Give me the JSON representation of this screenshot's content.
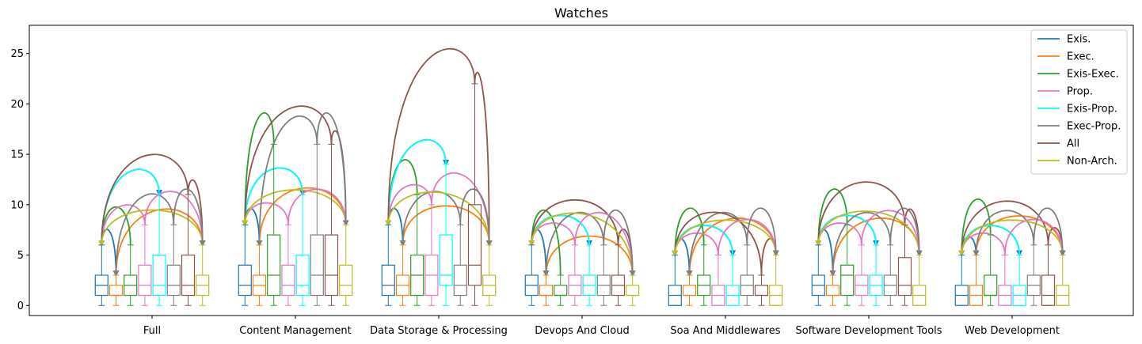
{
  "chart_data": {
    "type": "box",
    "title": "Watches",
    "xlabel": "",
    "ylabel": "",
    "ylim": [
      -1,
      27.8
    ],
    "yticks": [
      0,
      5,
      10,
      15,
      20,
      25
    ],
    "categories": [
      "Full",
      "Content Management",
      "Data Storage & Processing",
      "Devops And Cloud",
      "Soa And Middlewares",
      "Software Development Tools",
      "Web Development"
    ],
    "legend_position": "top-right",
    "grid": false,
    "series": [
      {
        "name": "Exis.",
        "color": "#1f77b4",
        "boxes": [
          {
            "min": 0,
            "q1": 1,
            "median": 2,
            "q3": 3,
            "max": 6
          },
          {
            "min": 0,
            "q1": 1,
            "median": 2,
            "q3": 4,
            "max": 8
          },
          {
            "min": 0,
            "q1": 1,
            "median": 2,
            "q3": 4,
            "max": 8
          },
          {
            "min": 0,
            "q1": 1,
            "median": 2,
            "q3": 3,
            "max": 6
          },
          {
            "min": 0,
            "q1": 0,
            "median": 1,
            "q3": 2,
            "max": 5
          },
          {
            "min": 0,
            "q1": 1,
            "median": 2,
            "q3": 3,
            "max": 6
          },
          {
            "min": 0,
            "q1": 0,
            "median": 1,
            "q3": 2,
            "max": 5
          }
        ]
      },
      {
        "name": "Exec.",
        "color": "#ff7f0e",
        "boxes": [
          {
            "min": 0,
            "q1": 1,
            "median": 1,
            "q3": 2,
            "max": 3
          },
          {
            "min": 0,
            "q1": 1,
            "median": 2,
            "q3": 3,
            "max": 6
          },
          {
            "min": 0,
            "q1": 1,
            "median": 2,
            "q3": 3,
            "max": 6
          },
          {
            "min": 0,
            "q1": 1,
            "median": 1,
            "q3": 2,
            "max": 3
          },
          {
            "min": 0,
            "q1": 1,
            "median": 1,
            "q3": 2,
            "max": 3
          },
          {
            "min": 0,
            "q1": 1,
            "median": 1,
            "q3": 2,
            "max": 3
          },
          {
            "min": 0,
            "q1": 0,
            "median": 1,
            "q3": 2,
            "max": 5
          }
        ]
      },
      {
        "name": "Exis-Exec.",
        "color": "#2ca02c",
        "boxes": [
          {
            "min": 0,
            "q1": 1,
            "median": 2,
            "q3": 3,
            "max": 6
          },
          {
            "min": 0,
            "q1": 1,
            "median": 3,
            "q3": 7,
            "max": 16
          },
          {
            "min": 0,
            "q1": 1,
            "median": 3,
            "q3": 5,
            "max": 11
          },
          {
            "min": 0,
            "q1": 1,
            "median": 1,
            "q3": 2,
            "max": 3
          },
          {
            "min": 0,
            "q1": 1,
            "median": 2,
            "q3": 3,
            "max": 6
          },
          {
            "min": 0,
            "q1": 1,
            "median": 3,
            "q3": 4,
            "max": 8
          },
          {
            "min": 0,
            "q1": 1,
            "median": 1,
            "q3": 3,
            "max": 7
          }
        ]
      },
      {
        "name": "Prop.",
        "color": "#e377c2",
        "boxes": [
          {
            "min": 0,
            "q1": 1,
            "median": 2,
            "q3": 4,
            "max": 8
          },
          {
            "min": 0,
            "q1": 1,
            "median": 2,
            "q3": 4,
            "max": 8
          },
          {
            "min": 0,
            "q1": 1,
            "median": 3,
            "q3": 5,
            "max": 10
          },
          {
            "min": 0,
            "q1": 1,
            "median": 2,
            "q3": 3,
            "max": 6
          },
          {
            "min": 0,
            "q1": 0,
            "median": 1,
            "q3": 2,
            "max": 5
          },
          {
            "min": 0,
            "q1": 1,
            "median": 2,
            "q3": 3,
            "max": 6
          },
          {
            "min": 0,
            "q1": 0,
            "median": 1,
            "q3": 2,
            "max": 5
          }
        ]
      },
      {
        "name": "Exis-Prop.",
        "color": "#00ffff",
        "boxes": [
          {
            "min": 0,
            "q1": 1,
            "median": 2,
            "q3": 5,
            "max": 11
          },
          {
            "min": 0,
            "q1": 1,
            "median": 2,
            "q3": 5,
            "max": 11
          },
          {
            "min": 0,
            "q1": 2,
            "median": 3,
            "q3": 7,
            "max": 14
          },
          {
            "min": 0,
            "q1": 1,
            "median": 2,
            "q3": 3,
            "max": 6
          },
          {
            "min": 0,
            "q1": 0,
            "median": 1,
            "q3": 2,
            "max": 5
          },
          {
            "min": 0,
            "q1": 1,
            "median": 2,
            "q3": 3,
            "max": 6
          },
          {
            "min": 0,
            "q1": 0,
            "median": 1,
            "q3": 2,
            "max": 5
          }
        ]
      },
      {
        "name": "Exec-Prop.",
        "color": "#7f7f7f",
        "boxes": [
          {
            "min": 0,
            "q1": 1,
            "median": 2,
            "q3": 4,
            "max": 8
          },
          {
            "min": 0,
            "q1": 1,
            "median": 3,
            "q3": 7,
            "max": 16
          },
          {
            "min": 0,
            "q1": 1,
            "median": 2,
            "q3": 4,
            "max": 8
          },
          {
            "min": 0,
            "q1": 1,
            "median": 2,
            "q3": 3,
            "max": 6
          },
          {
            "min": 0,
            "q1": 1,
            "median": 2,
            "q3": 3,
            "max": 6
          },
          {
            "min": 0,
            "q1": 1,
            "median": 2,
            "q3": 3,
            "max": 6
          },
          {
            "min": 0,
            "q1": 1,
            "median": 2,
            "q3": 3,
            "max": 6
          }
        ]
      },
      {
        "name": "All",
        "color": "#8c564b",
        "boxes": [
          {
            "min": 0,
            "q1": 1,
            "median": 2,
            "q3": 5,
            "max": 11
          },
          {
            "min": 0,
            "q1": 1,
            "median": 3,
            "q3": 7,
            "max": 16
          },
          {
            "min": 0,
            "q1": 2,
            "median": 4,
            "q3": 10,
            "max": 22
          },
          {
            "min": 0,
            "q1": 1,
            "median": 2,
            "q3": 3,
            "max": 6
          },
          {
            "min": 0,
            "q1": 1,
            "median": 1,
            "q3": 2,
            "max": 3
          },
          {
            "min": 0,
            "q1": 1,
            "median": 2,
            "q3": 4.75,
            "max": 8
          },
          {
            "min": 0,
            "q1": 0,
            "median": 1,
            "q3": 3,
            "max": 6
          }
        ]
      },
      {
        "name": "Non-Arch.",
        "color": "#bcbd22",
        "boxes": [
          {
            "min": 0,
            "q1": 1,
            "median": 2,
            "q3": 3,
            "max": 6
          },
          {
            "min": 0,
            "q1": 1,
            "median": 2,
            "q3": 4,
            "max": 8
          },
          {
            "min": 0,
            "q1": 1,
            "median": 2,
            "q3": 3,
            "max": 6
          },
          {
            "min": 0,
            "q1": 1,
            "median": 1,
            "q3": 2,
            "max": 3
          },
          {
            "min": 0,
            "q1": 0,
            "median": 1,
            "q3": 2,
            "max": 5
          },
          {
            "min": 0,
            "q1": 0,
            "median": 1,
            "q3": 2,
            "max": 5
          },
          {
            "min": 0,
            "q1": 0,
            "median": 1,
            "q3": 2,
            "max": 5
          }
        ]
      }
    ]
  }
}
